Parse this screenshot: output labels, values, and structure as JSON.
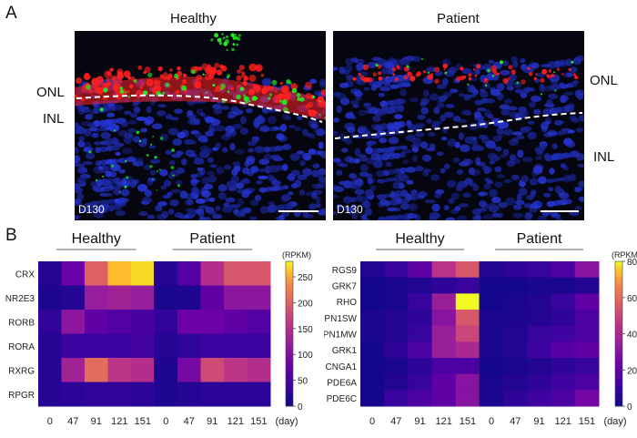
{
  "panel_a": {
    "label": "A",
    "left_title": "Healthy",
    "right_title": "Patient",
    "left_layer_top": "ONL",
    "left_layer_bottom": "INL",
    "right_layer_top": "ONL",
    "right_layer_bottom": "INL",
    "left_stamp": "D130",
    "right_stamp": "D130"
  },
  "panel_b": {
    "label": "B"
  },
  "colors": {
    "nuclei": "#2a3bd8",
    "red_marker": "#ff2020",
    "green_marker": "#22ee22",
    "dash": "#ffffff"
  },
  "chart_data": [
    {
      "type": "heatmap",
      "title": "",
      "group_labels": [
        "Healthy",
        "Patient"
      ],
      "x": [
        "0",
        "47",
        "91",
        "121",
        "151",
        "0",
        "47",
        "91",
        "121",
        "151"
      ],
      "xlabel": "(day)",
      "rows": [
        "CRX",
        "NR2E3",
        "RORB",
        "RORA",
        "RXRG",
        "RPGR"
      ],
      "values": [
        [
          20,
          80,
          200,
          260,
          270,
          20,
          60,
          150,
          190,
          190
        ],
        [
          15,
          20,
          120,
          130,
          120,
          10,
          15,
          70,
          110,
          110
        ],
        [
          30,
          110,
          70,
          60,
          50,
          30,
          80,
          80,
          70,
          60
        ],
        [
          20,
          40,
          40,
          40,
          45,
          20,
          30,
          40,
          40,
          40
        ],
        [
          20,
          130,
          210,
          160,
          150,
          15,
          90,
          180,
          160,
          150
        ],
        [
          20,
          25,
          30,
          30,
          25,
          15,
          20,
          25,
          25,
          25
        ]
      ],
      "colorbar": {
        "unit": "(RPKM)",
        "min": 0,
        "max": 280,
        "ticks": [
          0,
          50,
          100,
          150,
          200,
          250
        ]
      }
    },
    {
      "type": "heatmap",
      "title": "",
      "group_labels": [
        "Healthy",
        "Patient"
      ],
      "x": [
        "0",
        "47",
        "91",
        "121",
        "151",
        "0",
        "47",
        "91",
        "121",
        "151"
      ],
      "xlabel": "(day)",
      "rows": [
        "RGS9",
        "GRK7",
        "RHO",
        "OPN1SW",
        "OPN1MW",
        "GRK1",
        "CNGA1",
        "PDE6A",
        "PDE6C"
      ],
      "values": [
        [
          5,
          10,
          20,
          45,
          55,
          5,
          8,
          10,
          15,
          30
        ],
        [
          2,
          3,
          5,
          8,
          10,
          2,
          2,
          3,
          3,
          5
        ],
        [
          2,
          3,
          10,
          35,
          80,
          2,
          3,
          5,
          10,
          20
        ],
        [
          3,
          5,
          8,
          30,
          55,
          3,
          4,
          5,
          8,
          15
        ],
        [
          3,
          5,
          10,
          35,
          50,
          3,
          5,
          10,
          12,
          15
        ],
        [
          2,
          8,
          15,
          35,
          40,
          3,
          5,
          12,
          18,
          20
        ],
        [
          2,
          3,
          8,
          15,
          15,
          2,
          3,
          5,
          8,
          10
        ],
        [
          2,
          5,
          10,
          20,
          30,
          3,
          5,
          8,
          12,
          15
        ],
        [
          2,
          10,
          15,
          20,
          30,
          3,
          8,
          12,
          15,
          25
        ]
      ],
      "colorbar": {
        "unit": "(RPKM)",
        "min": 0,
        "max": 80,
        "ticks": [
          0,
          20,
          40,
          60,
          80
        ]
      }
    }
  ]
}
